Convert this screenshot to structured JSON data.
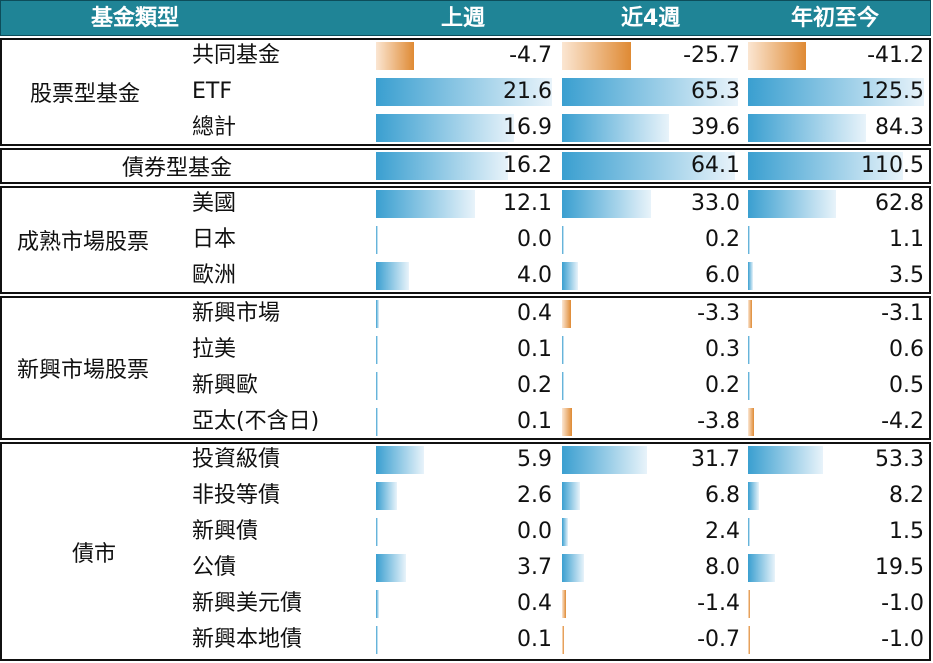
{
  "header": {
    "category_label": "基金類型",
    "col_week": "上週",
    "col_4week": "近4週",
    "col_ytd": "年初至今",
    "bg_color": "#1f8496"
  },
  "colors": {
    "positive_bar": "#3a9fd0",
    "negative_bar": "#df8a34"
  },
  "groups": [
    {
      "label": "股票型基金",
      "rows": [
        {
          "label": "共同基金",
          "week": "-4.7",
          "w4": "-25.7",
          "ytd": "-41.2"
        },
        {
          "label": "ETF",
          "week": "21.6",
          "w4": "65.3",
          "ytd": "125.5"
        },
        {
          "label": "總計",
          "week": "16.9",
          "w4": "39.6",
          "ytd": "84.3"
        }
      ]
    },
    {
      "label": "債券型基金",
      "rows": [
        {
          "label": "",
          "week": "16.2",
          "w4": "64.1",
          "ytd": "110.5"
        }
      ]
    },
    {
      "label": "成熟市場股票",
      "rows": [
        {
          "label": "美國",
          "week": "12.1",
          "w4": "33.0",
          "ytd": "62.8"
        },
        {
          "label": "日本",
          "week": "0.0",
          "w4": "0.2",
          "ytd": "1.1"
        },
        {
          "label": "歐洲",
          "week": "4.0",
          "w4": "6.0",
          "ytd": "3.5"
        }
      ]
    },
    {
      "label": "新興市場股票",
      "rows": [
        {
          "label": "新興市場",
          "week": "0.4",
          "w4": "-3.3",
          "ytd": "-3.1"
        },
        {
          "label": "拉美",
          "week": "0.1",
          "w4": "0.3",
          "ytd": "0.6"
        },
        {
          "label": "新興歐",
          "week": "0.2",
          "w4": "0.2",
          "ytd": "0.5"
        },
        {
          "label": "亞太(不含日)",
          "week": "0.1",
          "w4": "-3.8",
          "ytd": "-4.2"
        }
      ]
    },
    {
      "label": "債市",
      "rows": [
        {
          "label": "投資級債",
          "week": "5.9",
          "w4": "31.7",
          "ytd": "53.3"
        },
        {
          "label": "非投等債",
          "week": "2.6",
          "w4": "6.8",
          "ytd": "8.2"
        },
        {
          "label": "新興債",
          "week": "0.0",
          "w4": "2.4",
          "ytd": "1.5"
        },
        {
          "label": "公債",
          "week": "3.7",
          "w4": "8.0",
          "ytd": "19.5"
        },
        {
          "label": "新興美元債",
          "week": "0.4",
          "w4": "-1.4",
          "ytd": "-1.0"
        },
        {
          "label": "新興本地債",
          "week": "0.1",
          "w4": "-0.7",
          "ytd": "-1.0"
        }
      ]
    }
  ]
}
